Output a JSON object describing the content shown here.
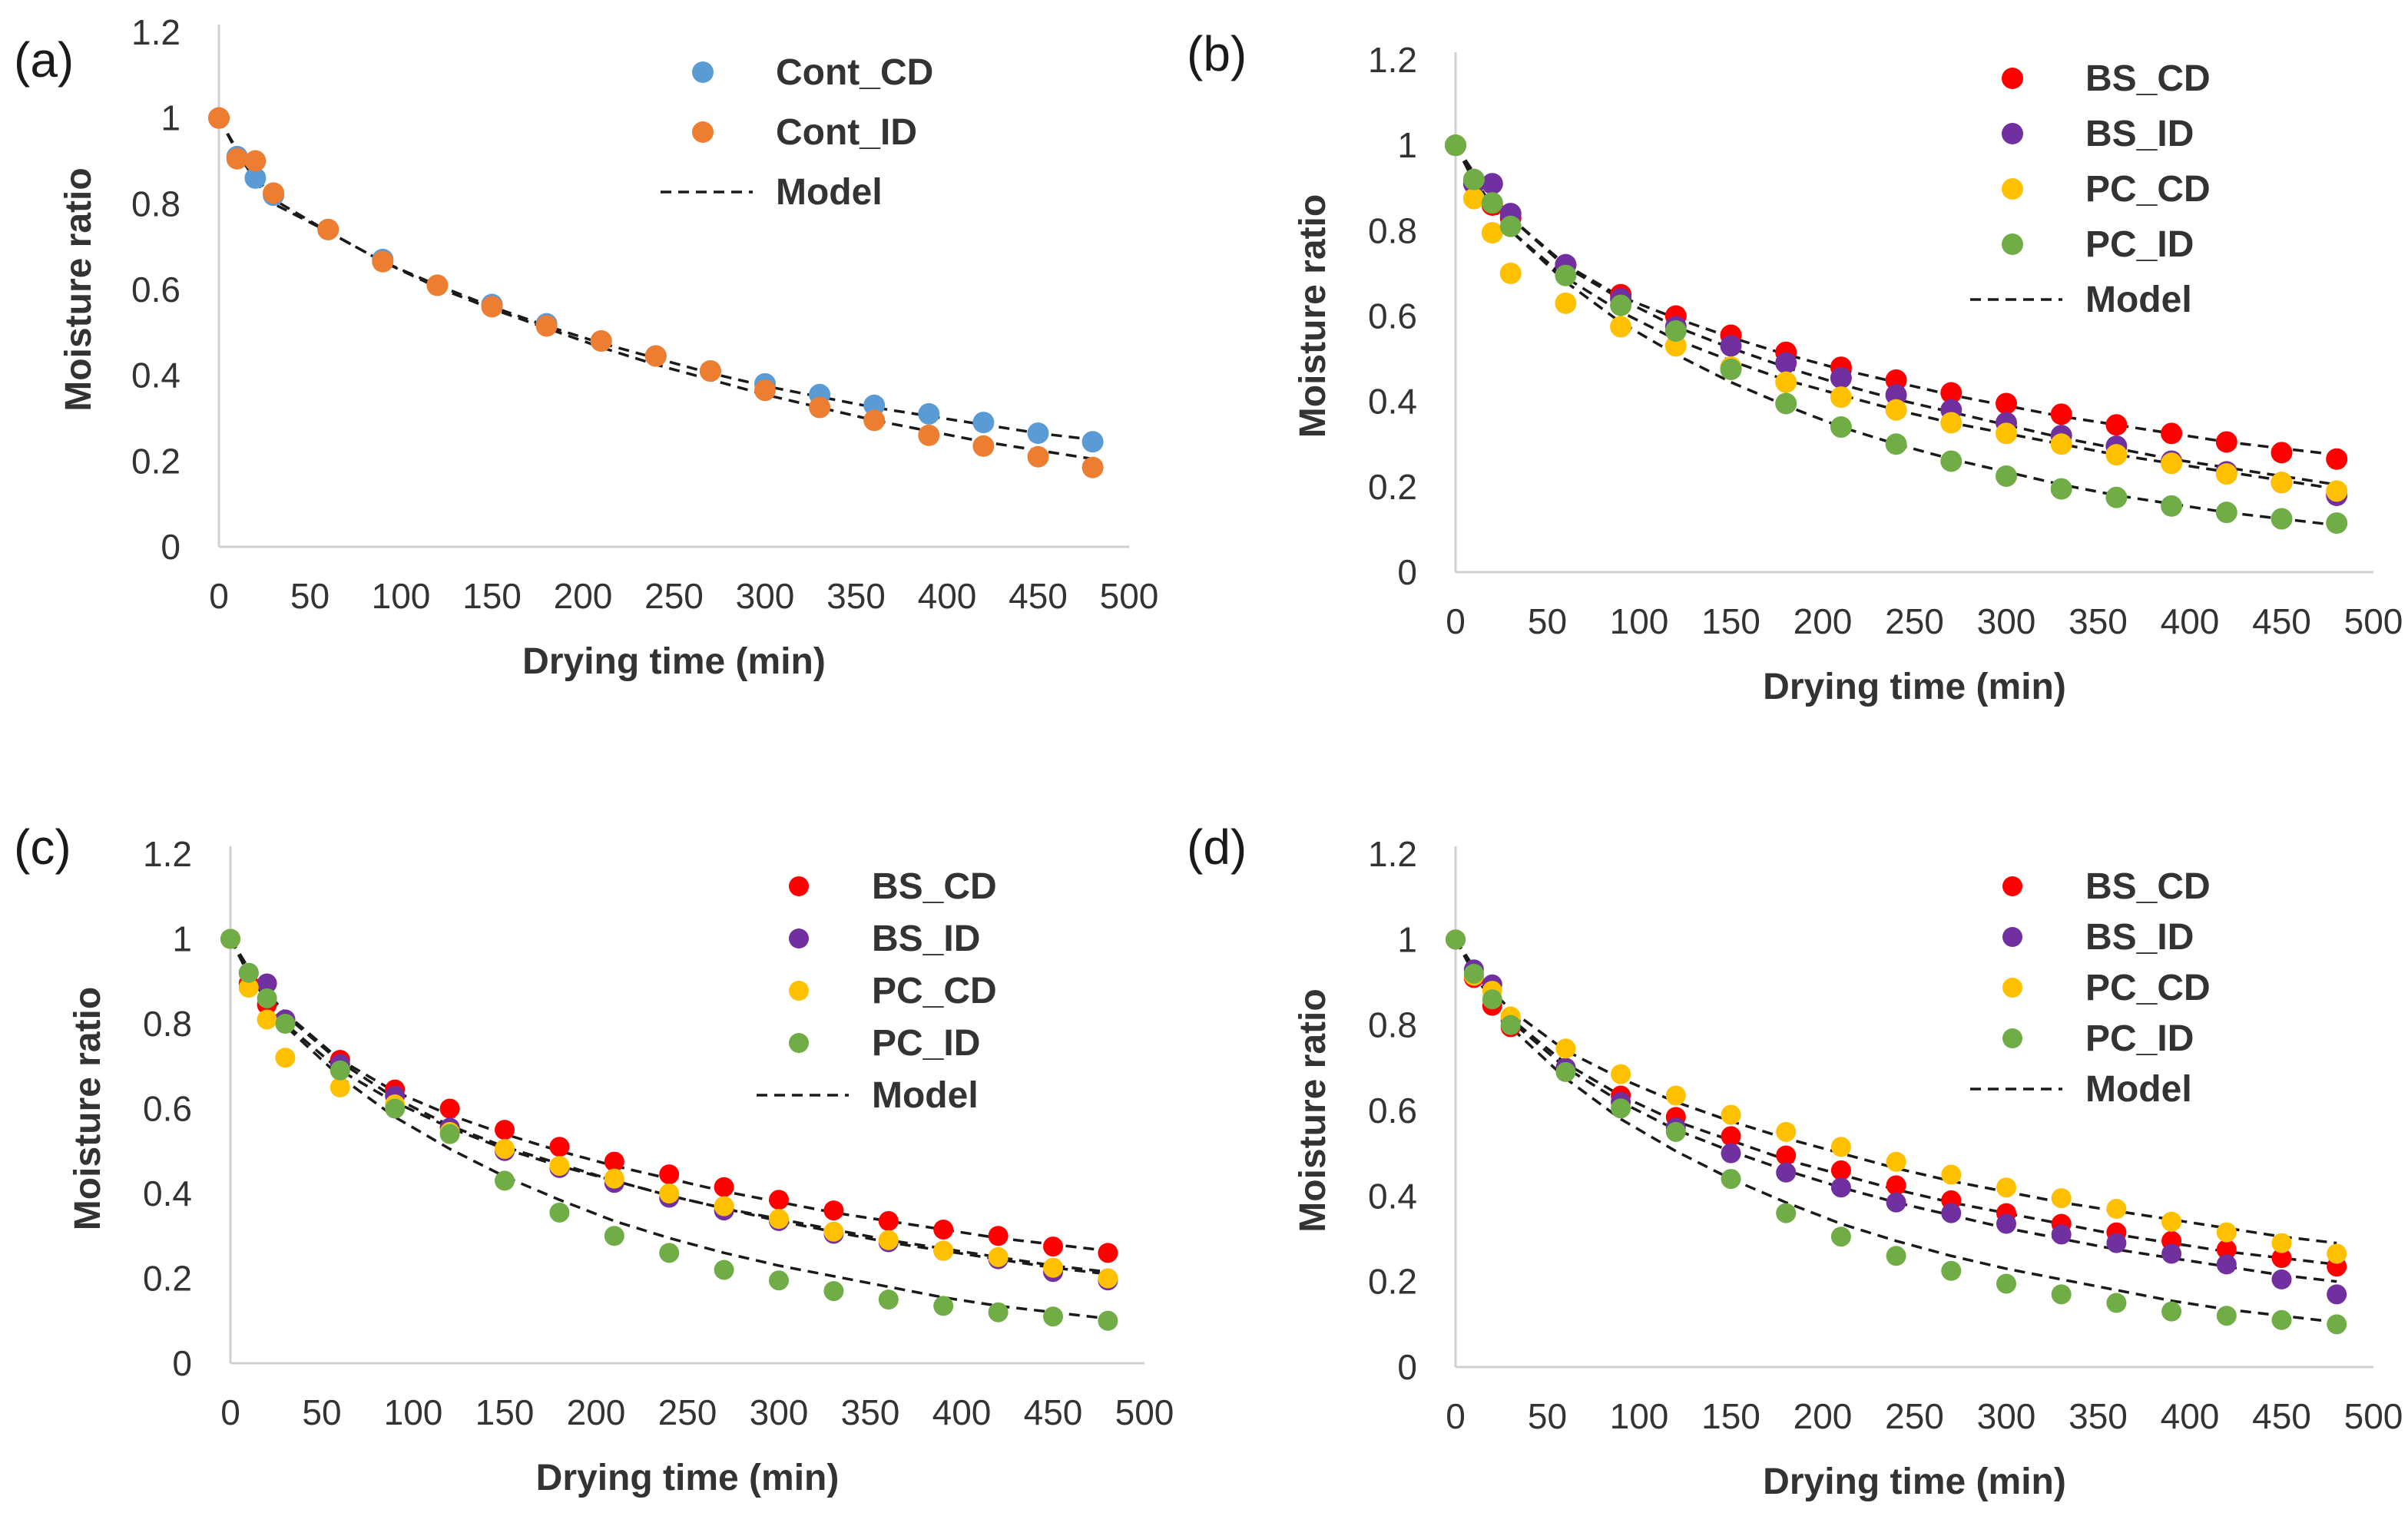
{
  "chart_data": [
    {
      "panel_label": "(a)",
      "type": "scatter",
      "xlabel": "Drying time (min)",
      "ylabel": "Moisture ratio",
      "xlim": [
        0,
        500
      ],
      "ylim": [
        0,
        1.2
      ],
      "xticks": [
        "0",
        "50",
        "100",
        "150",
        "200",
        "250",
        "300",
        "350",
        "400",
        "450",
        "500"
      ],
      "yticks": [
        "0",
        "0.2",
        "0.4",
        "0.6",
        "0.8",
        "1",
        "1.2"
      ],
      "legend_position": "top-right",
      "model_label": "Model",
      "series": [
        {
          "name": "Cont_CD",
          "color": "#5b9bd5",
          "x": [
            0,
            10,
            20,
            30,
            60,
            90,
            120,
            150,
            180,
            210,
            240,
            270,
            300,
            330,
            360,
            390,
            420,
            450,
            480
          ],
          "y": [
            1.0,
            0.91,
            0.86,
            0.82,
            0.74,
            0.67,
            0.61,
            0.565,
            0.52,
            0.48,
            0.445,
            0.41,
            0.38,
            0.355,
            0.33,
            0.31,
            0.29,
            0.265,
            0.245
          ],
          "model": [
            1.0,
            0.92,
            0.855,
            0.8,
            0.735,
            0.665,
            0.61,
            0.56,
            0.515,
            0.475,
            0.44,
            0.405,
            0.375,
            0.35,
            0.325,
            0.305,
            0.285,
            0.265,
            0.25
          ]
        },
        {
          "name": "Cont_ID",
          "color": "#ed7d31",
          "x": [
            0,
            10,
            20,
            30,
            60,
            90,
            120,
            150,
            180,
            210,
            240,
            270,
            300,
            330,
            360,
            390,
            420,
            450,
            480
          ],
          "y": [
            1.0,
            0.905,
            0.9,
            0.825,
            0.74,
            0.665,
            0.61,
            0.56,
            0.515,
            0.48,
            0.445,
            0.41,
            0.365,
            0.325,
            0.295,
            0.26,
            0.235,
            0.21,
            0.185
          ],
          "model": [
            1.0,
            0.925,
            0.865,
            0.81,
            0.735,
            0.665,
            0.605,
            0.555,
            0.51,
            0.465,
            0.425,
            0.39,
            0.355,
            0.325,
            0.295,
            0.27,
            0.245,
            0.225,
            0.205
          ]
        }
      ]
    },
    {
      "panel_label": "(b)",
      "type": "scatter",
      "xlabel": "Drying time (min)",
      "ylabel": "Moisture ratio",
      "xlim": [
        0,
        500
      ],
      "ylim": [
        0,
        1.2
      ],
      "xticks": [
        "0",
        "50",
        "100",
        "150",
        "200",
        "250",
        "300",
        "350",
        "400",
        "450",
        "500"
      ],
      "yticks": [
        "0",
        "0.2",
        "0.4",
        "0.6",
        "0.8",
        "1",
        "1.2"
      ],
      "legend_position": "top-right",
      "model_label": "Model",
      "series": [
        {
          "name": "BS_CD",
          "color": "#ff0000",
          "x": [
            0,
            10,
            20,
            30,
            60,
            90,
            120,
            150,
            180,
            210,
            240,
            270,
            300,
            330,
            360,
            390,
            420,
            450,
            480
          ],
          "y": [
            1.0,
            0.91,
            0.86,
            0.83,
            0.72,
            0.65,
            0.6,
            0.555,
            0.515,
            0.48,
            0.45,
            0.42,
            0.395,
            0.37,
            0.345,
            0.325,
            0.305,
            0.28,
            0.265
          ],
          "model": [
            1.0,
            0.935,
            0.88,
            0.83,
            0.72,
            0.645,
            0.595,
            0.55,
            0.51,
            0.475,
            0.445,
            0.415,
            0.39,
            0.365,
            0.345,
            0.325,
            0.305,
            0.29,
            0.275
          ]
        },
        {
          "name": "BS_ID",
          "color": "#7030a0",
          "x": [
            0,
            10,
            20,
            30,
            60,
            90,
            120,
            150,
            180,
            210,
            240,
            270,
            300,
            330,
            360,
            390,
            420,
            450,
            480
          ],
          "y": [
            1.0,
            0.91,
            0.91,
            0.84,
            0.72,
            0.64,
            0.575,
            0.53,
            0.49,
            0.455,
            0.415,
            0.38,
            0.35,
            0.32,
            0.295,
            0.26,
            0.235,
            0.21,
            0.18
          ],
          "model": [
            1.0,
            0.935,
            0.88,
            0.83,
            0.715,
            0.64,
            0.575,
            0.525,
            0.48,
            0.44,
            0.405,
            0.375,
            0.345,
            0.315,
            0.29,
            0.265,
            0.245,
            0.225,
            0.205
          ]
        },
        {
          "name": "PC_CD",
          "color": "#ffc000",
          "x": [
            0,
            10,
            20,
            30,
            60,
            90,
            120,
            150,
            180,
            210,
            240,
            270,
            300,
            330,
            360,
            390,
            420,
            450,
            480
          ],
          "y": [
            1.0,
            0.875,
            0.795,
            0.7,
            0.63,
            0.575,
            0.53,
            0.48,
            0.445,
            0.41,
            0.38,
            0.35,
            0.325,
            0.3,
            0.275,
            0.255,
            0.23,
            0.21,
            0.19
          ],
          "model": [
            1.0,
            0.915,
            0.855,
            0.8,
            0.69,
            0.61,
            0.545,
            0.495,
            0.45,
            0.415,
            0.38,
            0.35,
            0.325,
            0.3,
            0.275,
            0.255,
            0.235,
            0.215,
            0.195
          ]
        },
        {
          "name": "PC_ID",
          "color": "#70ad47",
          "x": [
            0,
            10,
            20,
            30,
            60,
            90,
            120,
            150,
            180,
            210,
            240,
            270,
            300,
            330,
            360,
            390,
            420,
            450,
            480
          ],
          "y": [
            1.0,
            0.92,
            0.865,
            0.81,
            0.695,
            0.625,
            0.565,
            0.475,
            0.395,
            0.34,
            0.3,
            0.26,
            0.225,
            0.195,
            0.175,
            0.155,
            0.14,
            0.125,
            0.115
          ],
          "model": [
            1.0,
            0.92,
            0.86,
            0.8,
            0.68,
            0.585,
            0.51,
            0.445,
            0.39,
            0.34,
            0.3,
            0.265,
            0.235,
            0.205,
            0.18,
            0.16,
            0.14,
            0.125,
            0.11
          ]
        }
      ]
    },
    {
      "panel_label": "(c)",
      "type": "scatter",
      "xlabel": "Drying time (min)",
      "ylabel": "Moisture ratio",
      "xlim": [
        0,
        500
      ],
      "ylim": [
        0,
        1.2
      ],
      "xticks": [
        "0",
        "50",
        "100",
        "150",
        "200",
        "250",
        "300",
        "350",
        "400",
        "450",
        "500"
      ],
      "yticks": [
        "0",
        "0.2",
        "0.4",
        "0.6",
        "0.8",
        "1",
        "1.2"
      ],
      "legend_position": "top-right",
      "model_label": "Model",
      "series": [
        {
          "name": "BS_CD",
          "color": "#ff0000",
          "x": [
            0,
            10,
            20,
            30,
            60,
            90,
            120,
            150,
            180,
            210,
            240,
            270,
            300,
            330,
            360,
            390,
            420,
            450,
            480
          ],
          "y": [
            1.0,
            0.895,
            0.845,
            0.81,
            0.715,
            0.645,
            0.6,
            0.55,
            0.51,
            0.475,
            0.445,
            0.415,
            0.385,
            0.36,
            0.335,
            0.315,
            0.3,
            0.275,
            0.26
          ],
          "model": [
            1.0,
            0.93,
            0.875,
            0.825,
            0.715,
            0.64,
            0.585,
            0.54,
            0.5,
            0.465,
            0.435,
            0.405,
            0.38,
            0.355,
            0.335,
            0.315,
            0.295,
            0.28,
            0.265
          ]
        },
        {
          "name": "BS_ID",
          "color": "#7030a0",
          "x": [
            0,
            10,
            20,
            30,
            60,
            90,
            120,
            150,
            180,
            210,
            240,
            270,
            300,
            330,
            360,
            390,
            420,
            450,
            480
          ],
          "y": [
            1.0,
            0.92,
            0.895,
            0.81,
            0.705,
            0.63,
            0.555,
            0.5,
            0.46,
            0.425,
            0.39,
            0.36,
            0.335,
            0.305,
            0.285,
            0.265,
            0.245,
            0.215,
            0.195
          ],
          "model": [
            1.0,
            0.93,
            0.87,
            0.82,
            0.71,
            0.625,
            0.56,
            0.51,
            0.47,
            0.43,
            0.395,
            0.365,
            0.335,
            0.31,
            0.285,
            0.265,
            0.245,
            0.225,
            0.21
          ]
        },
        {
          "name": "PC_CD",
          "color": "#ffc000",
          "x": [
            0,
            10,
            20,
            30,
            60,
            90,
            120,
            150,
            180,
            210,
            240,
            270,
            300,
            330,
            360,
            390,
            420,
            450,
            480
          ],
          "y": [
            1.0,
            0.885,
            0.81,
            0.72,
            0.65,
            0.61,
            0.545,
            0.505,
            0.465,
            0.435,
            0.4,
            0.37,
            0.34,
            0.31,
            0.29,
            0.265,
            0.25,
            0.225,
            0.2
          ],
          "model": [
            1.0,
            0.915,
            0.855,
            0.8,
            0.69,
            0.615,
            0.555,
            0.505,
            0.465,
            0.43,
            0.395,
            0.365,
            0.34,
            0.315,
            0.29,
            0.27,
            0.25,
            0.23,
            0.215
          ]
        },
        {
          "name": "PC_ID",
          "color": "#70ad47",
          "x": [
            0,
            10,
            20,
            30,
            60,
            90,
            120,
            150,
            180,
            210,
            240,
            270,
            300,
            330,
            360,
            390,
            420,
            450,
            480
          ],
          "y": [
            1.0,
            0.92,
            0.86,
            0.8,
            0.69,
            0.6,
            0.54,
            0.43,
            0.355,
            0.3,
            0.26,
            0.22,
            0.195,
            0.17,
            0.15,
            0.135,
            0.12,
            0.11,
            0.1
          ],
          "model": [
            1.0,
            0.92,
            0.855,
            0.795,
            0.675,
            0.58,
            0.505,
            0.44,
            0.385,
            0.335,
            0.295,
            0.26,
            0.23,
            0.205,
            0.18,
            0.155,
            0.135,
            0.12,
            0.105
          ]
        }
      ]
    },
    {
      "panel_label": "(d)",
      "type": "scatter",
      "xlabel": "Drying time (min)",
      "ylabel": "Moisture ratio",
      "xlim": [
        0,
        500
      ],
      "ylim": [
        0,
        1.2
      ],
      "xticks": [
        "0",
        "50",
        "100",
        "150",
        "200",
        "250",
        "300",
        "350",
        "400",
        "450",
        "500"
      ],
      "yticks": [
        "0",
        "0.2",
        "0.4",
        "0.6",
        "0.8",
        "1",
        "1.2"
      ],
      "legend_position": "top-right",
      "model_label": "Model",
      "series": [
        {
          "name": "BS_CD",
          "color": "#ff0000",
          "x": [
            0,
            10,
            20,
            30,
            60,
            90,
            120,
            150,
            180,
            210,
            240,
            270,
            300,
            330,
            360,
            390,
            420,
            450,
            480
          ],
          "y": [
            1.0,
            0.91,
            0.845,
            0.795,
            0.7,
            0.635,
            0.585,
            0.54,
            0.495,
            0.46,
            0.425,
            0.39,
            0.36,
            0.335,
            0.315,
            0.295,
            0.275,
            0.255,
            0.235
          ],
          "model": [
            1.0,
            0.925,
            0.865,
            0.815,
            0.71,
            0.635,
            0.575,
            0.53,
            0.485,
            0.45,
            0.415,
            0.385,
            0.36,
            0.335,
            0.31,
            0.29,
            0.27,
            0.255,
            0.24
          ]
        },
        {
          "name": "BS_ID",
          "color": "#7030a0",
          "x": [
            0,
            10,
            20,
            30,
            60,
            90,
            120,
            150,
            180,
            210,
            240,
            270,
            300,
            330,
            360,
            390,
            420,
            450,
            480
          ],
          "y": [
            1.0,
            0.93,
            0.895,
            0.81,
            0.7,
            0.62,
            0.56,
            0.5,
            0.455,
            0.42,
            0.385,
            0.36,
            0.335,
            0.31,
            0.29,
            0.265,
            0.24,
            0.205,
            0.17
          ],
          "model": [
            1.0,
            0.925,
            0.865,
            0.81,
            0.7,
            0.62,
            0.555,
            0.505,
            0.46,
            0.42,
            0.385,
            0.355,
            0.325,
            0.3,
            0.275,
            0.255,
            0.235,
            0.215,
            0.2
          ]
        },
        {
          "name": "PC_CD",
          "color": "#ffc000",
          "x": [
            0,
            10,
            20,
            30,
            60,
            90,
            120,
            150,
            180,
            210,
            240,
            270,
            300,
            330,
            360,
            390,
            420,
            450,
            480
          ],
          "y": [
            1.0,
            0.915,
            0.88,
            0.82,
            0.745,
            0.685,
            0.635,
            0.59,
            0.55,
            0.515,
            0.48,
            0.45,
            0.42,
            0.395,
            0.37,
            0.34,
            0.315,
            0.29,
            0.265
          ],
          "model": [
            1.0,
            0.935,
            0.88,
            0.835,
            0.74,
            0.675,
            0.62,
            0.575,
            0.535,
            0.5,
            0.465,
            0.435,
            0.41,
            0.385,
            0.365,
            0.345,
            0.325,
            0.305,
            0.29
          ]
        },
        {
          "name": "PC_ID",
          "color": "#70ad47",
          "x": [
            0,
            10,
            20,
            30,
            60,
            90,
            120,
            150,
            180,
            210,
            240,
            270,
            300,
            330,
            360,
            390,
            420,
            450,
            480
          ],
          "y": [
            1.0,
            0.92,
            0.86,
            0.8,
            0.69,
            0.605,
            0.55,
            0.44,
            0.36,
            0.305,
            0.26,
            0.225,
            0.195,
            0.17,
            0.15,
            0.13,
            0.12,
            0.11,
            0.1
          ],
          "model": [
            1.0,
            0.92,
            0.855,
            0.795,
            0.675,
            0.58,
            0.505,
            0.44,
            0.385,
            0.335,
            0.295,
            0.26,
            0.23,
            0.205,
            0.18,
            0.155,
            0.135,
            0.12,
            0.105
          ]
        }
      ]
    }
  ]
}
